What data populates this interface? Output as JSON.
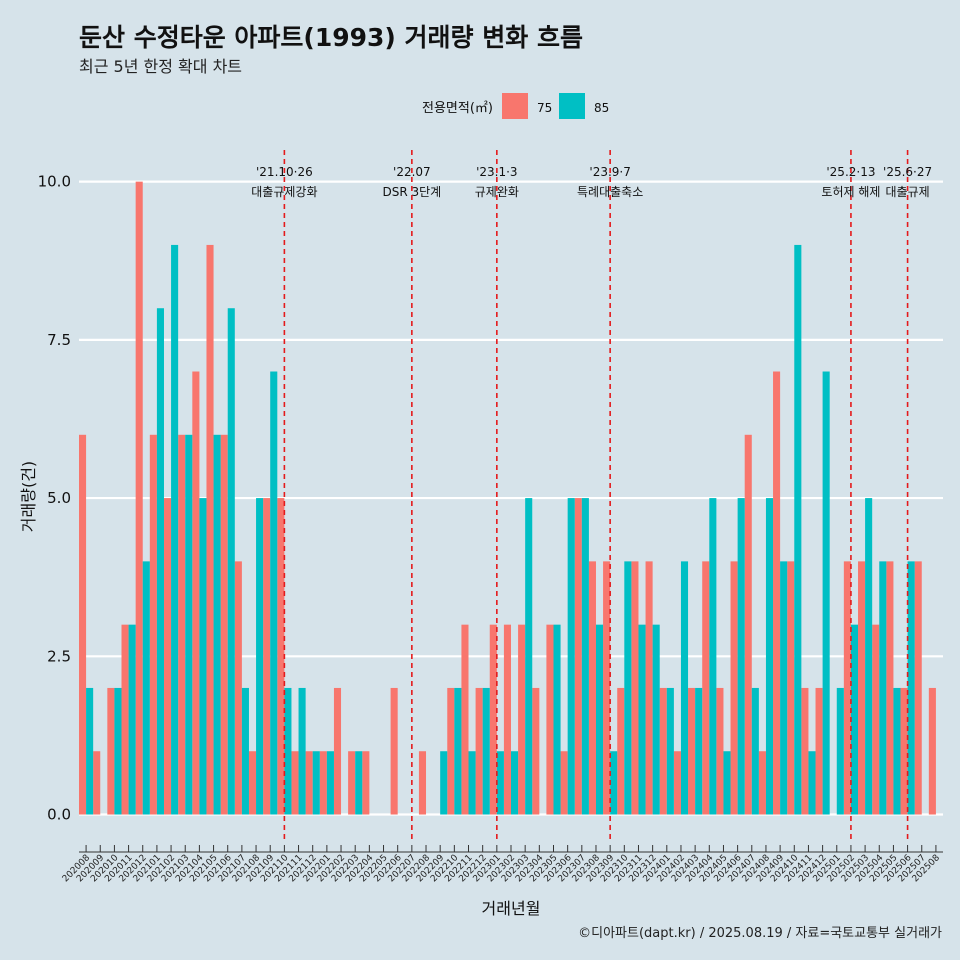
{
  "chart_data": {
    "type": "bar",
    "title": "둔산 수정타운 아파트(1993) 거래량 변화 흐름",
    "subtitle": "최근 5년 한정 확대 차트",
    "xlabel": "거래년월",
    "ylabel": "거래량(건)",
    "ylim": [
      -0.45,
      10.5
    ],
    "yticks": [
      0,
      2.5,
      5,
      7.5,
      10
    ],
    "ytick_labels": [
      "0.0",
      "2.5",
      "5.0",
      "7.5",
      "10.0"
    ],
    "legend_title": "전용면적(㎡)",
    "legend_position": "top",
    "caption": "©디아파트(dapt.kr) / 2025.08.19 / 자료=국토교통부 실거래가",
    "categories": [
      "202008",
      "202009",
      "202010",
      "202011",
      "202012",
      "202101",
      "202102",
      "202103",
      "202104",
      "202105",
      "202106",
      "202107",
      "202108",
      "202109",
      "202110",
      "202111",
      "202112",
      "202201",
      "202202",
      "202203",
      "202204",
      "202205",
      "202206",
      "202207",
      "202208",
      "202209",
      "202210",
      "202211",
      "202212",
      "202301",
      "202302",
      "202303",
      "202304",
      "202305",
      "202306",
      "202307",
      "202308",
      "202309",
      "202310",
      "202311",
      "202312",
      "202401",
      "202402",
      "202403",
      "202404",
      "202405",
      "202406",
      "202407",
      "202408",
      "202409",
      "202410",
      "202411",
      "202412",
      "202501",
      "202502",
      "202503",
      "202504",
      "202505",
      "202506",
      "202507",
      "202508"
    ],
    "series": [
      {
        "name": "75",
        "color": "#f8766d",
        "values": [
          6,
          1,
          2,
          3,
          10,
          6,
          5,
          6,
          7,
          9,
          6,
          4,
          1,
          5,
          5,
          1,
          1,
          1,
          2,
          1,
          1,
          0,
          2,
          0,
          1,
          0,
          2,
          3,
          2,
          3,
          3,
          3,
          2,
          3,
          1,
          5,
          4,
          4,
          2,
          4,
          4,
          2,
          1,
          2,
          4,
          2,
          4,
          6,
          1,
          7,
          4,
          2,
          2,
          0,
          4,
          4,
          3,
          4,
          2,
          4,
          2
        ]
      },
      {
        "name": "85",
        "color": "#00bfc4",
        "values": [
          2,
          0,
          2,
          3,
          4,
          8,
          9,
          6,
          5,
          6,
          8,
          2,
          5,
          7,
          2,
          2,
          1,
          1,
          0,
          1,
          0,
          0,
          0,
          0,
          0,
          1,
          2,
          1,
          2,
          1,
          1,
          5,
          0,
          3,
          5,
          5,
          3,
          1,
          4,
          3,
          3,
          2,
          4,
          2,
          5,
          1,
          5,
          2,
          5,
          4,
          9,
          1,
          7,
          2,
          3,
          5,
          4,
          2,
          4,
          0,
          0
        ]
      }
    ],
    "events": [
      {
        "category": "202110",
        "date": "'21.10·26",
        "label": "대출규제강화"
      },
      {
        "category": "202207",
        "date": "'22.07",
        "label": "DSR 3단계"
      },
      {
        "category": "202301",
        "date": "'23.1·3",
        "label": "규제완화"
      },
      {
        "category": "202309",
        "date": "'23.9·7",
        "label": "특례대출축소"
      },
      {
        "category": "202502",
        "date": "'25.2·13",
        "label": "토허제 해제"
      },
      {
        "category": "202506",
        "date": "'25.6·27",
        "label": "대출규제"
      }
    ]
  }
}
